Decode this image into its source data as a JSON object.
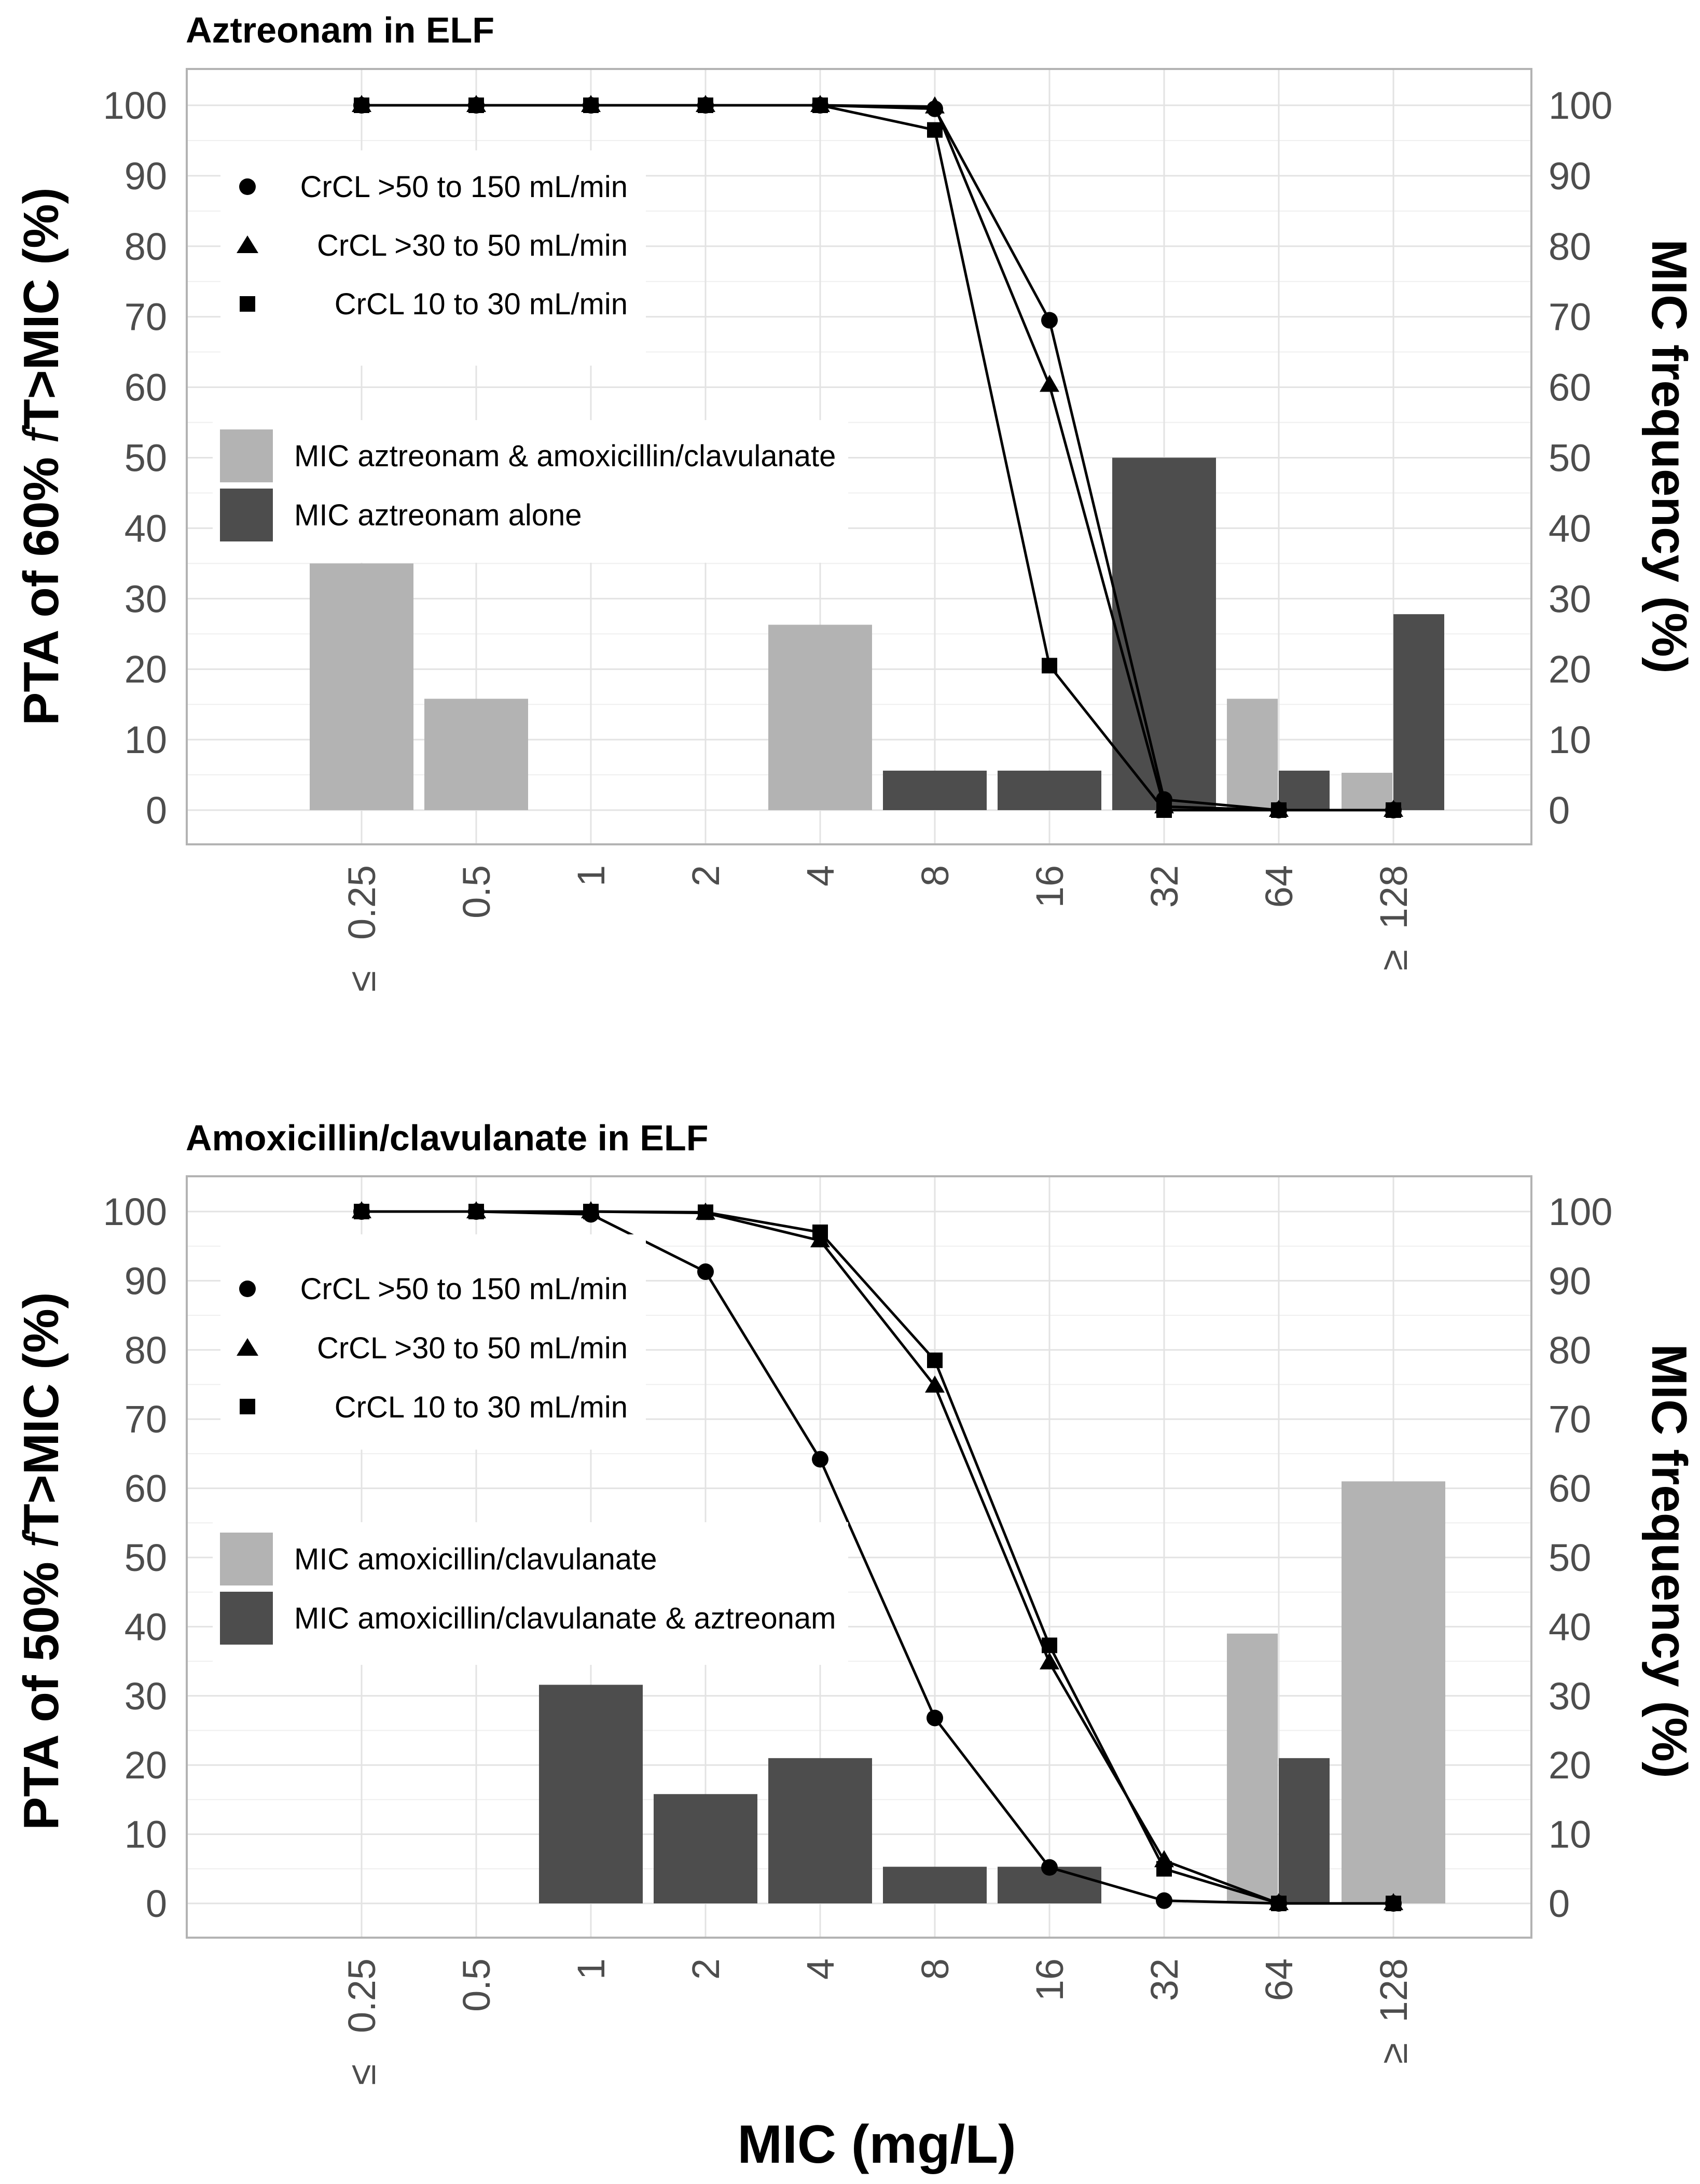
{
  "colors": {
    "bar_light": "#b3b3b3",
    "bar_dark": "#4d4d4d",
    "line": "#000000",
    "grid": "#e3e3e3",
    "frame": "#b3b3b3"
  },
  "x_axis_label": "MIC (mg/L)",
  "chart_data": [
    {
      "type": "bar+line",
      "title": "Aztreonam in ELF",
      "ylabel_left_parts": [
        "PTA of 60% ",
        "f",
        "T>MIC (%)"
      ],
      "ylabel_right": "MIC frequency (%)",
      "xlabel": "MIC (mg/L)",
      "categories": [
        "0.25",
        "0.5",
        "1",
        "2",
        "4",
        "8",
        "16",
        "32",
        "64",
        "128"
      ],
      "category_prefixes": [
        "≤",
        "",
        "",
        "",
        "",
        "",
        "",
        "",
        "",
        "≥"
      ],
      "ylim": [
        0,
        100
      ],
      "yticks": [
        0,
        10,
        20,
        30,
        40,
        50,
        60,
        70,
        80,
        90,
        100
      ],
      "bar_series": [
        {
          "name": "MIC aztreonam & amoxicillin/clavulanate",
          "color": "#b3b3b3",
          "values": [
            35,
            15.8,
            0,
            0,
            26.3,
            0,
            0,
            0,
            15.8,
            5.3
          ]
        },
        {
          "name": "MIC aztreonam alone",
          "color": "#4d4d4d",
          "values": [
            0,
            0,
            0,
            0,
            0,
            5.6,
            5.6,
            50,
            5.6,
            27.8
          ]
        }
      ],
      "line_series": [
        {
          "name": "CrCL >50 to 150 mL/min",
          "marker": "circle",
          "values": [
            100,
            100,
            100,
            100,
            100,
            99.5,
            69.5,
            1.5,
            0,
            0
          ]
        },
        {
          "name": "CrCL >30 to 50 mL/min",
          "marker": "triangle",
          "values": [
            100,
            100,
            100,
            100,
            100,
            99.8,
            60.3,
            0.5,
            0,
            0
          ]
        },
        {
          "name": "CrCL 10 to 30 mL/min",
          "marker": "square",
          "values": [
            100,
            100,
            100,
            100,
            100,
            96.5,
            20.5,
            0,
            0,
            0
          ]
        }
      ]
    },
    {
      "type": "bar+line",
      "title": "Amoxicillin/clavulanate in ELF",
      "ylabel_left_parts": [
        "PTA of 50% ",
        "f",
        "T>MIC (%)"
      ],
      "ylabel_right": "MIC frequency (%)",
      "xlabel": "MIC (mg/L)",
      "categories": [
        "0.25",
        "0.5",
        "1",
        "2",
        "4",
        "8",
        "16",
        "32",
        "64",
        "128"
      ],
      "category_prefixes": [
        "≤",
        "",
        "",
        "",
        "",
        "",
        "",
        "",
        "",
        "≥"
      ],
      "ylim": [
        0,
        100
      ],
      "yticks": [
        0,
        10,
        20,
        30,
        40,
        50,
        60,
        70,
        80,
        90,
        100
      ],
      "bar_series": [
        {
          "name": "MIC amoxicillin/clavulanate",
          "color": "#b3b3b3",
          "values": [
            0,
            0,
            0,
            0,
            0,
            0,
            0,
            0,
            39,
            61
          ]
        },
        {
          "name": "MIC amoxicillin/clavulanate & aztreonam",
          "color": "#4d4d4d",
          "values": [
            0,
            0,
            31.6,
            15.8,
            21,
            5.3,
            5.3,
            0,
            21,
            0
          ]
        }
      ],
      "line_series": [
        {
          "name": "CrCL >50 to 150 mL/min",
          "marker": "circle",
          "values": [
            100,
            100,
            99.6,
            91.3,
            64.2,
            26.8,
            5.2,
            0.4,
            0,
            0
          ]
        },
        {
          "name": "CrCL >30 to 50 mL/min",
          "marker": "triangle",
          "values": [
            100,
            100,
            100,
            99.8,
            95.8,
            74.8,
            34.8,
            6.2,
            0,
            0
          ]
        },
        {
          "name": "CrCL 10 to 30 mL/min",
          "marker": "square",
          "values": [
            100,
            100,
            100,
            99.9,
            97,
            78.5,
            37.3,
            5,
            0,
            0
          ]
        }
      ]
    }
  ]
}
